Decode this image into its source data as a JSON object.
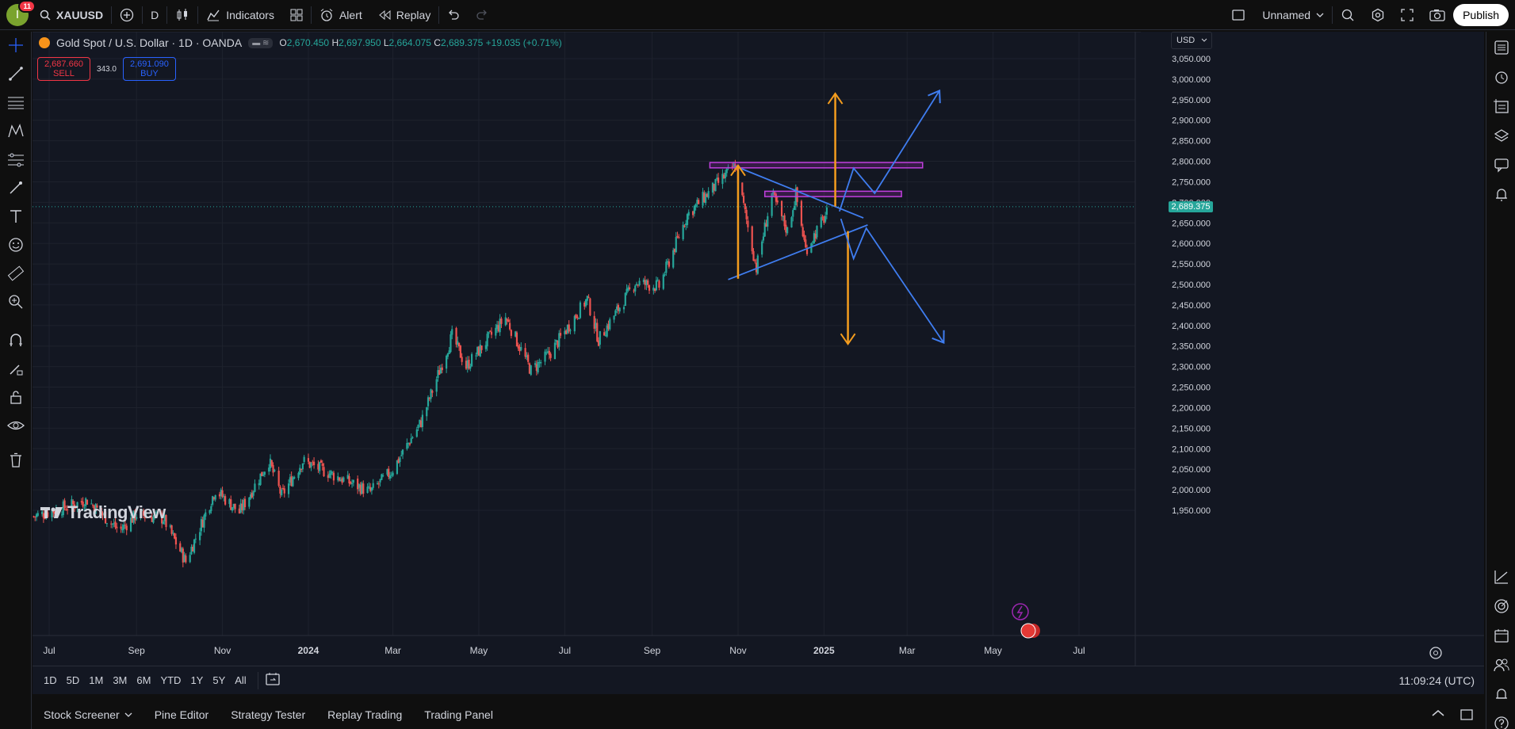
{
  "toolbar": {
    "avatar_letter": "I",
    "notification_count": "11",
    "symbol": "XAUUSD",
    "interval": "D",
    "indicators_label": "Indicators",
    "alert_label": "Alert",
    "replay_label": "Replay",
    "layout_name": "Unnamed",
    "publish_label": "Publish"
  },
  "legend": {
    "title": "Gold Spot / U.S. Dollar · 1D · OANDA",
    "o_label": "O",
    "o": "2,670.450",
    "h_label": "H",
    "h": "2,697.950",
    "l_label": "L",
    "l": "2,664.075",
    "c_label": "C",
    "c": "2,689.375",
    "change": "+19.035 (+0.71%)",
    "sell_price": "2,687.660",
    "sell_label": "SELL",
    "spread": "343.0",
    "buy_price": "2,691.090",
    "buy_label": "BUY"
  },
  "currency": "USD",
  "last_price": "2,689.375",
  "watermark": "TradingView",
  "chart_data": {
    "type": "candlestick",
    "symbol": "XAUUSD",
    "y_ticks": [
      "3,050.000",
      "3,000.000",
      "2,950.000",
      "2,900.000",
      "2,850.000",
      "2,800.000",
      "2,750.000",
      "2,700.000",
      "2,650.000",
      "2,600.000",
      "2,550.000",
      "2,500.000",
      "2,450.000",
      "2,400.000",
      "2,350.000",
      "2,300.000",
      "2,250.000",
      "2,200.000",
      "2,150.000",
      "2,100.000",
      "2,050.000",
      "2,000.000",
      "1,950.000"
    ],
    "ylim": [
      1925,
      3078
    ],
    "x_ticks": [
      "Jul",
      "Sep",
      "Nov",
      "2024",
      "Mar",
      "May",
      "Jul",
      "Sep",
      "Nov",
      "2025",
      "Mar",
      "May",
      "Jul"
    ],
    "x_tick_months": [
      "2023-07",
      "2023-09",
      "2023-11",
      "2024-01",
      "2024-03",
      "2024-05",
      "2024-07",
      "2024-09",
      "2024-11",
      "2025-01",
      "2025-03",
      "2025-05",
      "2025-07"
    ],
    "price_path": [
      [
        "2023-06-20",
        1935
      ],
      [
        "2023-07-15",
        1960
      ],
      [
        "2023-07-28",
        1975
      ],
      [
        "2023-08-20",
        1900
      ],
      [
        "2023-09-01",
        1940
      ],
      [
        "2023-09-20",
        1930
      ],
      [
        "2023-10-06",
        1825
      ],
      [
        "2023-10-27",
        2000
      ],
      [
        "2023-11-13",
        1945
      ],
      [
        "2023-12-04",
        2070
      ],
      [
        "2023-12-13",
        1985
      ],
      [
        "2023-12-28",
        2070
      ],
      [
        "2024-02-14",
        1995
      ],
      [
        "2024-02-29",
        2045
      ],
      [
        "2024-03-21",
        2165
      ],
      [
        "2024-04-12",
        2375
      ],
      [
        "2024-04-22",
        2300
      ],
      [
        "2024-05-20",
        2420
      ],
      [
        "2024-06-07",
        2290
      ],
      [
        "2024-06-20",
        2330
      ],
      [
        "2024-07-17",
        2465
      ],
      [
        "2024-07-25",
        2365
      ],
      [
        "2024-08-20",
        2505
      ],
      [
        "2024-09-06",
        2495
      ],
      [
        "2024-09-26",
        2670
      ],
      [
        "2024-10-30",
        2790
      ],
      [
        "2024-11-14",
        2540
      ],
      [
        "2024-11-25",
        2720
      ],
      [
        "2024-12-06",
        2630
      ],
      [
        "2024-12-12",
        2720
      ],
      [
        "2024-12-19",
        2585
      ],
      [
        "2025-01-06",
        2690
      ]
    ],
    "last_close": 2689.375,
    "annotations": [
      {
        "type": "rectangle",
        "color": "#c13fde",
        "from": [
          "2024-10-12",
          2797
        ],
        "to": [
          "2025-03-12",
          2784
        ]
      },
      {
        "type": "rectangle",
        "color": "#c13fde",
        "from": [
          "2024-11-20",
          2727
        ],
        "to": [
          "2025-02-25",
          2714
        ]
      },
      {
        "type": "trendline",
        "color": "#3f7df0",
        "from": [
          "2024-10-30",
          2788
        ],
        "to": [
          "2025-01-29",
          2662
        ]
      },
      {
        "type": "trendline",
        "color": "#3f7df0",
        "from": [
          "2024-10-25",
          2512
        ],
        "to": [
          "2025-02-01",
          2645
        ]
      },
      {
        "type": "arrow",
        "color": "#f39c1e",
        "from": [
          "2024-11-01",
          2514
        ],
        "to": [
          "2024-11-01",
          2790
        ]
      },
      {
        "type": "arrow",
        "color": "#f39c1e",
        "from": [
          "2025-01-09",
          2690
        ],
        "to": [
          "2025-01-09",
          2965
        ]
      },
      {
        "type": "arrow",
        "color": "#f39c1e",
        "from": [
          "2025-01-18",
          2630
        ],
        "to": [
          "2025-01-18",
          2355
        ]
      },
      {
        "type": "path_arrow",
        "color": "#3f7df0",
        "points": [
          [
            "2025-01-12",
            2678
          ],
          [
            "2025-01-22",
            2783
          ],
          [
            "2025-02-06",
            2722
          ],
          [
            "2025-03-24",
            2972
          ]
        ]
      },
      {
        "type": "path_arrow",
        "color": "#3f7df0",
        "points": [
          [
            "2025-01-13",
            2660
          ],
          [
            "2025-01-22",
            2563
          ],
          [
            "2025-01-31",
            2637
          ],
          [
            "2025-03-27",
            2358
          ]
        ]
      }
    ]
  },
  "range_buttons": [
    "1D",
    "5D",
    "1M",
    "3M",
    "6M",
    "YTD",
    "1Y",
    "5Y",
    "All"
  ],
  "clock": "11:09:24 (UTC)",
  "panels": [
    "Stock Screener",
    "Pine Editor",
    "Strategy Tester",
    "Replay Trading",
    "Trading Panel"
  ]
}
